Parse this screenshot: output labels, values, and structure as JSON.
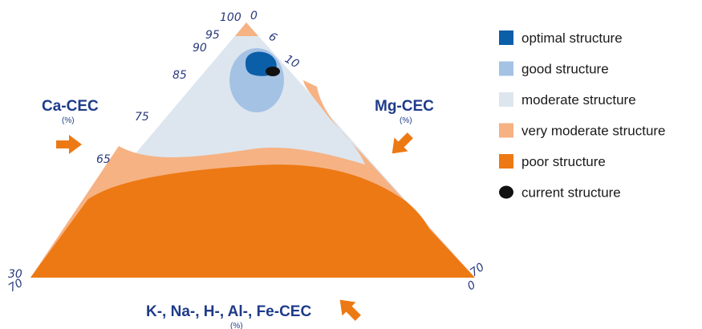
{
  "axes": {
    "ca": {
      "title": "Ca-CEC",
      "unit": "(%)",
      "ticks": [
        "100",
        "95",
        "90",
        "85",
        "75",
        "65",
        "30"
      ]
    },
    "mg": {
      "title": "Mg-CEC",
      "unit": "(%)",
      "ticks": [
        "0",
        "6",
        "10",
        "70"
      ]
    },
    "k": {
      "title": "K-, Na-, H-, Al-, Fe-CEC",
      "unit": "(%)",
      "ticks": [
        "70",
        "0"
      ]
    }
  },
  "legend": [
    {
      "label": "optimal structure",
      "color": "#0b5ea8",
      "shape": "square"
    },
    {
      "label": "good structure",
      "color": "#a4c2e4",
      "shape": "square"
    },
    {
      "label": "moderate structure",
      "color": "#dde6ef",
      "shape": "square"
    },
    {
      "label": "very moderate structure",
      "color": "#f6b283",
      "shape": "square"
    },
    {
      "label": "poor structure",
      "color": "#ed7914",
      "shape": "square"
    },
    {
      "label": "current structure",
      "color": "#111111",
      "shape": "circle"
    }
  ],
  "colors": {
    "arrow": "#ed7914",
    "poor": "#ed7914",
    "very_moderate": "#f6b283",
    "moderate": "#dde6ef",
    "good": "#a4c2e4",
    "optimal": "#0b5ea8",
    "current": "#111111"
  }
}
